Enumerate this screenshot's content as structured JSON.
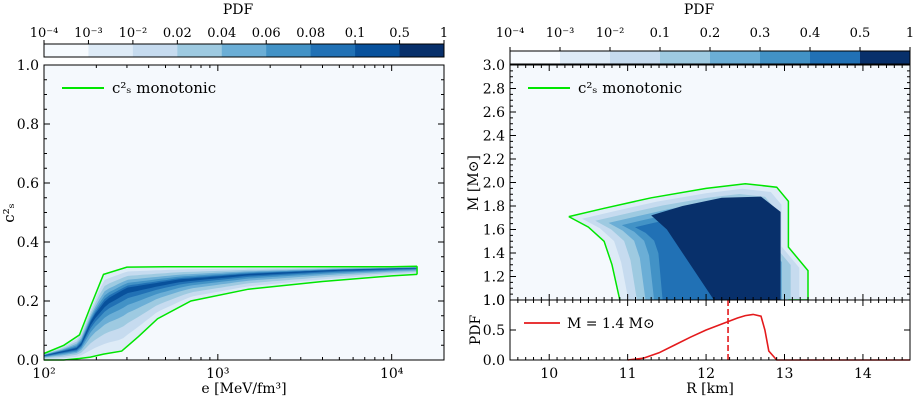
{
  "chart_data": [
    {
      "type": "heatmap",
      "panel": "left",
      "xlabel": "e [MeV/fm³]",
      "ylabel": "c²ₛ",
      "xscale": "log",
      "xlim": [
        100,
        20000
      ],
      "ylim": [
        0.0,
        1.0
      ],
      "x_tick_labels": [
        "10²",
        "10³",
        "10⁴"
      ],
      "x_tick_values": [
        100,
        1000,
        10000
      ],
      "y_tick_labels": [
        "0.0",
        "0.2",
        "0.4",
        "0.6",
        "0.8",
        "1.0"
      ],
      "y_tick_values": [
        0.0,
        0.2,
        0.4,
        0.6,
        0.8,
        1.0
      ],
      "colorbar": {
        "title": "PDF",
        "levels": [
          0.0001,
          0.001,
          0.01,
          0.02,
          0.04,
          0.06,
          0.08,
          0.1,
          0.5,
          1
        ],
        "labels": [
          "10⁻⁴",
          "10⁻³",
          "10⁻²",
          "0.02",
          "0.04",
          "0.06",
          "0.08",
          "0.1",
          "0.5",
          "1"
        ],
        "colors": [
          "#f7fbff",
          "#deebf7",
          "#c6dbef",
          "#9ecae1",
          "#6baed6",
          "#4292c6",
          "#2171b5",
          "#08519c",
          "#08306b"
        ]
      },
      "legend": {
        "label": "c²ₛ monotonic",
        "color": "#00e600",
        "position": "top-left"
      },
      "band_upper": {
        "x": [
          100,
          130,
          160,
          185,
          220,
          300,
          500,
          1000,
          3000,
          10000,
          14000
        ],
        "y": [
          0.022,
          0.05,
          0.085,
          0.18,
          0.29,
          0.315,
          0.316,
          0.316,
          0.316,
          0.316,
          0.318
        ]
      },
      "band_lower": {
        "x": [
          100,
          130,
          160,
          185,
          220,
          280,
          350,
          450,
          700,
          1500,
          4000,
          10000,
          14000
        ],
        "y": [
          0.0,
          0.0,
          0.005,
          0.01,
          0.02,
          0.03,
          0.08,
          0.14,
          0.2,
          0.24,
          0.266,
          0.285,
          0.29
        ]
      },
      "median": {
        "x": [
          100,
          160,
          190,
          230,
          300,
          600,
          1500,
          5000,
          14000
        ],
        "y": [
          0.015,
          0.04,
          0.14,
          0.2,
          0.24,
          0.27,
          0.29,
          0.305,
          0.312
        ]
      }
    },
    {
      "type": "heatmap",
      "panel": "right-top",
      "xlabel": "R [km]",
      "ylabel": "M [M⊙]",
      "xlim": [
        9.5,
        14.6
      ],
      "ylim": [
        1.0,
        3.0
      ],
      "y_tick_labels": [
        "1.0",
        "1.2",
        "1.4",
        "1.6",
        "1.8",
        "2.0",
        "2.2",
        "2.4",
        "2.6",
        "2.8",
        "3.0"
      ],
      "y_tick_values": [
        1.0,
        1.2,
        1.4,
        1.6,
        1.8,
        2.0,
        2.2,
        2.4,
        2.6,
        2.8,
        3.0
      ],
      "colorbar": {
        "title": "PDF",
        "levels": [
          0.0001,
          0.001,
          0.01,
          0.1,
          0.2,
          0.3,
          0.4,
          0.5,
          1
        ],
        "labels": [
          "10⁻⁴",
          "10⁻³",
          "10⁻²",
          "0.1",
          "0.2",
          "0.3",
          "0.4",
          "0.5",
          "1"
        ],
        "colors": [
          "#f7fbff",
          "#deebf7",
          "#c6dbef",
          "#9ecae1",
          "#6baed6",
          "#4292c6",
          "#2171b5",
          "#08306b"
        ]
      },
      "legend": {
        "label": "c²ₛ monotonic",
        "color": "#00e600",
        "position": "top-left"
      },
      "outer_contour": {
        "R": [
          10.25,
          10.7,
          11.3,
          12.0,
          12.5,
          12.9,
          13.05,
          13.05,
          13.3,
          13.3,
          13.05,
          12.9,
          12.5,
          12.2,
          11.9,
          11.5,
          11.1,
          10.9,
          10.8,
          10.7,
          10.5,
          10.25
        ],
        "M": [
          1.71,
          1.78,
          1.87,
          1.95,
          1.99,
          1.96,
          1.84,
          1.45,
          1.25,
          1.0,
          1.0,
          1.0,
          1.0,
          1.0,
          1.0,
          1.0,
          1.0,
          1.0,
          1.3,
          1.5,
          1.62,
          1.71
        ]
      },
      "core_contour": {
        "R": [
          11.3,
          11.7,
          12.2,
          12.7,
          12.95,
          12.95,
          12.5,
          12.1,
          11.8,
          11.5,
          11.3
        ],
        "M": [
          1.72,
          1.8,
          1.87,
          1.88,
          1.75,
          1.0,
          1.0,
          1.0,
          1.3,
          1.6,
          1.72
        ]
      }
    },
    {
      "type": "line",
      "panel": "right-bottom",
      "xlabel": "R [km]",
      "ylabel": "PDF",
      "xlim": [
        9.5,
        14.6
      ],
      "ylim": [
        0.0,
        1.0
      ],
      "x_tick_labels": [
        "10",
        "11",
        "12",
        "13",
        "14"
      ],
      "x_tick_values": [
        10,
        11,
        12,
        13,
        14
      ],
      "y_tick_labels": [
        "0.0",
        "0.5",
        "1.0"
      ],
      "y_tick_values": [
        0.0,
        0.5,
        1.0
      ],
      "series": [
        {
          "name": "M = 1.4 M⊙",
          "color": "#e41a1c",
          "x": [
            11.0,
            11.2,
            11.4,
            11.6,
            11.8,
            12.0,
            12.2,
            12.4,
            12.5,
            12.6,
            12.7,
            12.75,
            12.8,
            12.9,
            14.6
          ],
          "y": [
            0.0,
            0.03,
            0.12,
            0.25,
            0.38,
            0.5,
            0.6,
            0.7,
            0.74,
            0.76,
            0.73,
            0.5,
            0.15,
            0.0,
            0.0
          ]
        }
      ],
      "median_marker": {
        "x": 12.28,
        "style": "dashed",
        "color": "#e41a1c"
      },
      "legend": {
        "label": "M = 1.4 M⊙",
        "position": "top-left"
      }
    }
  ]
}
